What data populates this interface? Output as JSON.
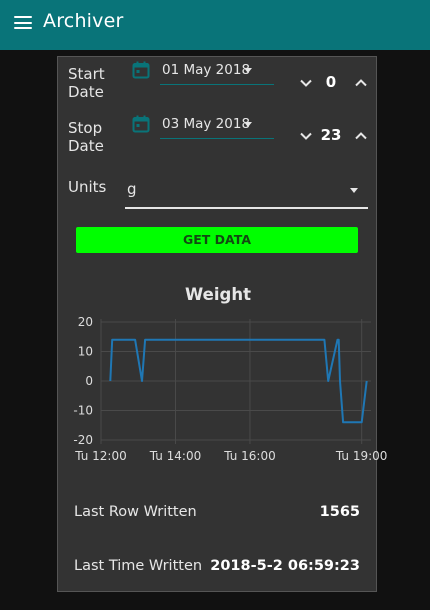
{
  "app": {
    "title": "Archiver"
  },
  "form": {
    "start": {
      "label": "Start\nDate",
      "date": "01 May 2018",
      "hour": "0"
    },
    "stop": {
      "label": "Stop\nDate",
      "date": "03 May 2018",
      "hour": "23"
    },
    "units": {
      "label": "Units",
      "value": "g"
    },
    "get_data_label": "GET DATA"
  },
  "chart_data": {
    "type": "line",
    "title": "Weight",
    "xlabel": "",
    "ylabel": "",
    "ylim": [
      -20,
      20
    ],
    "xlim": [
      "12:00",
      "19:15"
    ],
    "yticks": [
      "20",
      "10",
      "0",
      "-10",
      "-20"
    ],
    "xticks": [
      "Tu 12:00",
      "Tu 14:00",
      "Tu 16:00",
      "Tu 19:00"
    ],
    "grid": true,
    "series": [
      {
        "color": "#1f77b4",
        "x": [
          "12:15",
          "12:18",
          "12:55",
          "13:06",
          "13:11",
          "18:00",
          "18:06",
          "18:21",
          "18:23",
          "18:25",
          "18:30",
          "19:00",
          "19:08"
        ],
        "y": [
          0,
          14,
          14,
          0,
          14,
          14,
          0,
          14,
          14,
          0,
          -14,
          -14,
          0
        ]
      }
    ]
  },
  "stats": {
    "last_row_label": "Last Row Written",
    "last_row_value": "1565",
    "last_time_label": "Last Time Written",
    "last_time_value": "2018-5-2 06:59:23"
  },
  "colors": {
    "header": "#097479",
    "accent": "#097479",
    "button": "#00ff00",
    "line": "#1f77b4"
  }
}
